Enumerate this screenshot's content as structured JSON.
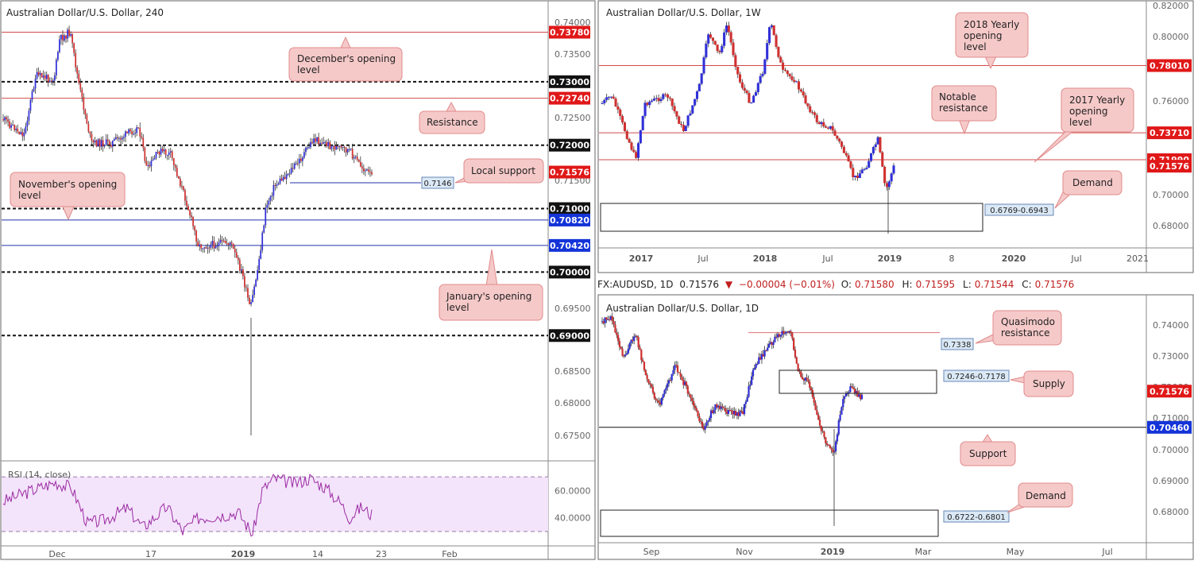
{
  "colors": {
    "up": "#3030d8",
    "down": "#d03030",
    "resistance": "#d24a4a",
    "support": "#2233aa",
    "black": "#111111",
    "callout_bg": "#f6c9c9",
    "callout_border": "#e08a8a",
    "rsi_band": "#f3e4fb",
    "rsi_line": "#9c2aa3"
  },
  "chart_data": [
    {
      "title": "Australian Dollar/U.S. Dollar, 240",
      "type": "candlestick",
      "ylim": [
        0.6705,
        0.7425
      ],
      "x_ticks": [
        "Dec",
        "17",
        "2019",
        "14",
        "23",
        "Feb"
      ],
      "y_ticks": [
        "0.74000",
        "0.73500",
        "0.72500",
        "0.71500",
        "0.70500",
        "0.69500",
        "0.68500",
        "0.68000",
        "0.67500"
      ],
      "price_labels": [
        {
          "value": 0.7378,
          "text": "0.73780",
          "style": "red"
        },
        {
          "value": 0.73,
          "text": "0.73000",
          "style": "black"
        },
        {
          "value": 0.7274,
          "text": "0.72740",
          "style": "red"
        },
        {
          "value": 0.72,
          "text": "0.72000",
          "style": "black"
        },
        {
          "value": 0.71576,
          "text": "0.71576",
          "style": "red"
        },
        {
          "value": 0.71,
          "text": "0.71000",
          "style": "black"
        },
        {
          "value": 0.7082,
          "text": "0.70820",
          "style": "blue"
        },
        {
          "value": 0.7042,
          "text": "0.70420",
          "style": "blue"
        },
        {
          "value": 0.7,
          "text": "0.70000",
          "style": "black"
        },
        {
          "value": 0.69,
          "text": "0.69000",
          "style": "black"
        }
      ],
      "levels": [
        {
          "value": 0.7378,
          "kind": "resistance"
        },
        {
          "value": 0.73,
          "kind": "round"
        },
        {
          "value": 0.7274,
          "kind": "resistance"
        },
        {
          "value": 0.72,
          "kind": "round"
        },
        {
          "value": 0.71,
          "kind": "round"
        },
        {
          "value": 0.7082,
          "kind": "support"
        },
        {
          "value": 0.7042,
          "kind": "support"
        },
        {
          "value": 0.7,
          "kind": "round"
        },
        {
          "value": 0.69,
          "kind": "round"
        }
      ],
      "local_support": {
        "value": 0.7146,
        "text": "0.7146"
      },
      "annotations": [
        "December's opening level",
        "Resistance",
        "Local support",
        "November's opening level",
        "January's opening level"
      ],
      "rsi": {
        "label": "RSI (14, close)",
        "ylim": [
          20,
          80
        ],
        "y_ticks": [
          "60.0000",
          "40.0000"
        ],
        "band": [
          30,
          70
        ]
      }
    },
    {
      "title": "Australian Dollar/U.S. Dollar, 1W",
      "type": "candlestick",
      "ylim": [
        0.6645,
        0.8205
      ],
      "x_ticks": [
        "2017",
        "Jul",
        "2018",
        "Jul",
        "2019",
        "8",
        "2020",
        "Jul",
        "2021"
      ],
      "y_ticks": [
        "0.82000",
        "0.80000",
        "0.76000",
        "0.70000",
        "0.68000"
      ],
      "price_labels": [
        {
          "value": 0.7801,
          "text": "0.78010",
          "style": "red"
        },
        {
          "value": 0.7371,
          "text": "0.73710",
          "style": "red"
        },
        {
          "value": 0.7199,
          "text": "0.71990",
          "style": "red"
        },
        {
          "value": 0.71576,
          "text": "0.71576",
          "style": "red"
        }
      ],
      "levels": [
        {
          "value": 0.7801,
          "kind": "resistance"
        },
        {
          "value": 0.7371,
          "kind": "resistance"
        },
        {
          "value": 0.7199,
          "kind": "resistance"
        }
      ],
      "zone": {
        "low": 0.6769,
        "high": 0.6943,
        "text": "0.6769-0.6943"
      },
      "annotations": [
        "2018 Yearly opening level",
        "Notable resistance",
        "2017 Yearly opening level",
        "Demand"
      ]
    },
    {
      "title": "Australian Dollar/U.S. Dollar, 1D",
      "type": "candlestick",
      "ylim": [
        0.6695,
        0.7445
      ],
      "x_ticks": [
        "Sep",
        "Nov",
        "2019",
        "Mar",
        "May",
        "Jul"
      ],
      "y_ticks": [
        "0.74000",
        "0.73000",
        "0.72000",
        "0.71000",
        "0.70000",
        "0.69000",
        "0.68000"
      ],
      "price_labels": [
        {
          "value": 0.71576,
          "text": "0.71576",
          "style": "red"
        },
        {
          "value": 0.7046,
          "text": "0.70460",
          "style": "blue"
        }
      ],
      "levels": [
        {
          "value": 0.7338,
          "kind": "resistance"
        },
        {
          "value": 0.7046,
          "kind": "round"
        }
      ],
      "quasimodo": {
        "value": 0.7338,
        "text": "0.7338"
      },
      "supply": {
        "low": 0.7178,
        "high": 0.7246,
        "text": "0.7246-0.7178"
      },
      "demand": {
        "low": 0.6722,
        "high": 0.6801,
        "text": "0.6722-0.6801"
      },
      "annotations": [
        "Quasimodo resistance",
        "Supply",
        "Support",
        "Demand"
      ]
    }
  ],
  "quote": {
    "symbol": "FX:AUDUSD, 1D",
    "last": "0.71576",
    "change": "−0.00004 (−0.01%)",
    "o_label": "O:",
    "o": "0.71580",
    "h_label": "H:",
    "h": "0.71595",
    "l_label": "L:",
    "l": "0.71544",
    "c_label": "C:",
    "c": "0.71576"
  }
}
